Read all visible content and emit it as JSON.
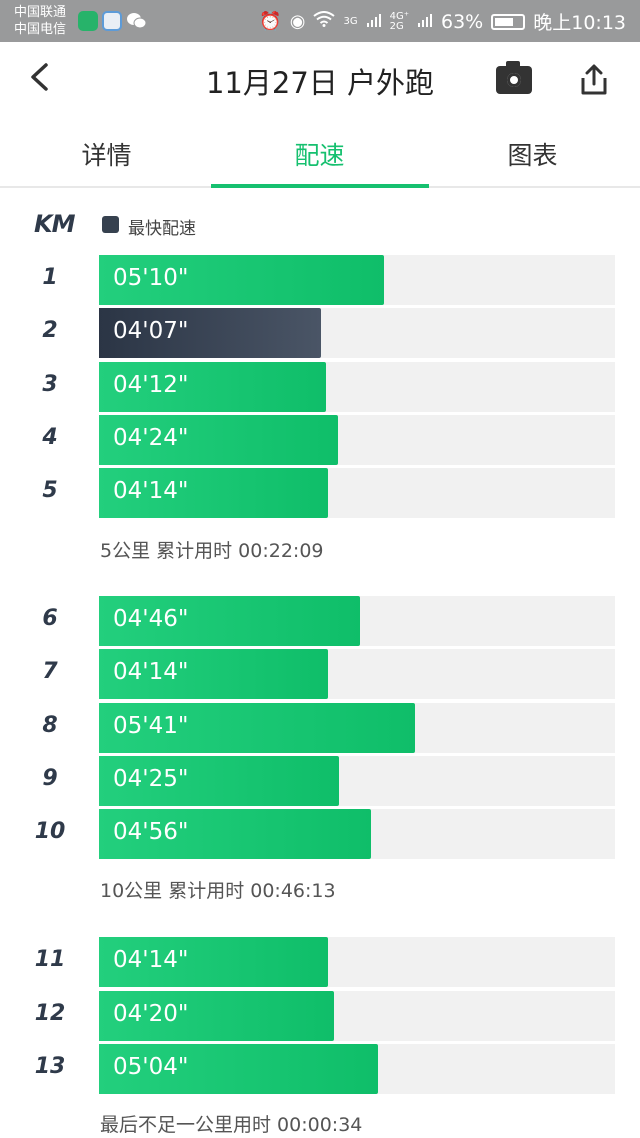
{
  "status_bar": {
    "carrier_1": "中国联通",
    "carrier_2": "中国电信",
    "signal_label": "3G",
    "network_label": "4G⁺",
    "network_label_2": "2G",
    "battery": "63%",
    "time": "晚上10:13"
  },
  "header": {
    "title": "11月27日 户外跑"
  },
  "tabs": [
    {
      "label": "详情",
      "active": false
    },
    {
      "label": "配速",
      "active": true
    },
    {
      "label": "图表",
      "active": false
    }
  ],
  "legend": {
    "unit": "KM",
    "fastest_label": "最快配速"
  },
  "colors": {
    "accent": "#16c06f",
    "bar": "#1fca77",
    "fastest_bar": "#36414f",
    "track": "#f1f1f1"
  },
  "splits": [
    {
      "km": "1",
      "pace": "05'10\"",
      "fraction": 0.553,
      "fastest": false
    },
    {
      "km": "2",
      "pace": "04'07\"",
      "fraction": 0.43,
      "fastest": true
    },
    {
      "km": "3",
      "pace": "04'12\"",
      "fraction": 0.44,
      "fastest": false
    },
    {
      "km": "4",
      "pace": "04'24\"",
      "fraction": 0.463,
      "fastest": false
    },
    {
      "km": "5",
      "pace": "04'14\"",
      "fraction": 0.444,
      "fastest": false
    },
    {
      "km": "6",
      "pace": "04'46\"",
      "fraction": 0.506,
      "fastest": false
    },
    {
      "km": "7",
      "pace": "04'14\"",
      "fraction": 0.444,
      "fastest": false
    },
    {
      "km": "8",
      "pace": "05'41\"",
      "fraction": 0.612,
      "fastest": false
    },
    {
      "km": "9",
      "pace": "04'25\"",
      "fraction": 0.465,
      "fastest": false
    },
    {
      "km": "10",
      "pace": "04'56\"",
      "fraction": 0.527,
      "fastest": false
    },
    {
      "km": "11",
      "pace": "04'14\"",
      "fraction": 0.444,
      "fastest": false
    },
    {
      "km": "12",
      "pace": "04'20\"",
      "fraction": 0.455,
      "fastest": false
    },
    {
      "km": "13",
      "pace": "05'04\"",
      "fraction": 0.541,
      "fastest": false
    }
  ],
  "summaries": [
    {
      "text": "5公里 累计用时 00:22:09"
    },
    {
      "text": "10公里 累计用时 00:46:13"
    },
    {
      "text": "最后不足一公里用时 00:00:34"
    }
  ]
}
